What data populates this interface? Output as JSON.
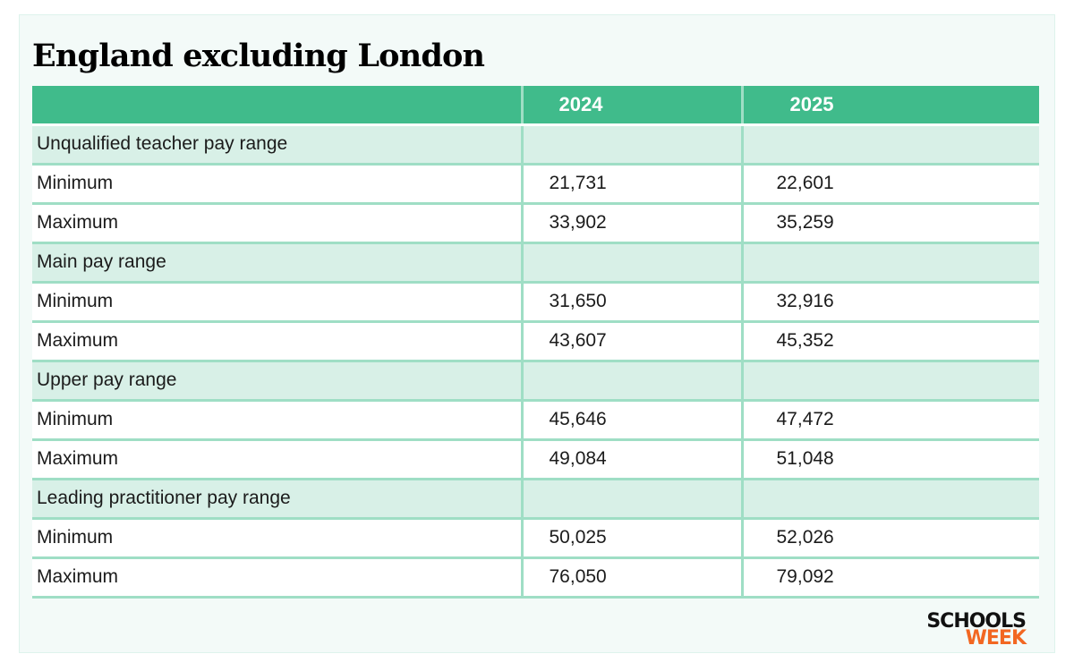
{
  "title": "England excluding London",
  "table": {
    "headers": [
      "",
      "2024",
      "2025"
    ],
    "rows": [
      {
        "type": "section",
        "label": "Unqualified teacher pay range",
        "v2024": "",
        "v2025": ""
      },
      {
        "type": "data",
        "label": "Minimum",
        "v2024": "21,731",
        "v2025": "22,601"
      },
      {
        "type": "data",
        "label": "Maximum",
        "v2024": "33,902",
        "v2025": "35,259"
      },
      {
        "type": "section",
        "label": "Main pay range",
        "v2024": "",
        "v2025": ""
      },
      {
        "type": "data",
        "label": "Minimum",
        "v2024": "31,650",
        "v2025": "32,916"
      },
      {
        "type": "data",
        "label": "Maximum",
        "v2024": "43,607",
        "v2025": "45,352"
      },
      {
        "type": "section",
        "label": "Upper pay range",
        "v2024": "",
        "v2025": ""
      },
      {
        "type": "data",
        "label": "Minimum",
        "v2024": "45,646",
        "v2025": "47,472"
      },
      {
        "type": "data",
        "label": "Maximum",
        "v2024": "49,084",
        "v2025": "51,048"
      },
      {
        "type": "section",
        "label": "Leading practitioner pay range",
        "v2024": "",
        "v2025": ""
      },
      {
        "type": "data",
        "label": "Minimum",
        "v2024": "50,025",
        "v2025": "52,026"
      },
      {
        "type": "data",
        "label": "Maximum",
        "v2024": "76,050",
        "v2025": "79,092"
      }
    ]
  },
  "logo": {
    "line1": "SCHOOLS",
    "line2": "WEEK",
    "line1_color": "#111111",
    "line2_color": "#f26722"
  },
  "colors": {
    "header_bg": "#40bb8b",
    "section_bg": "#d8f0e7",
    "grid_line": "#9fdec5",
    "card_bg": "#f3faf8"
  }
}
